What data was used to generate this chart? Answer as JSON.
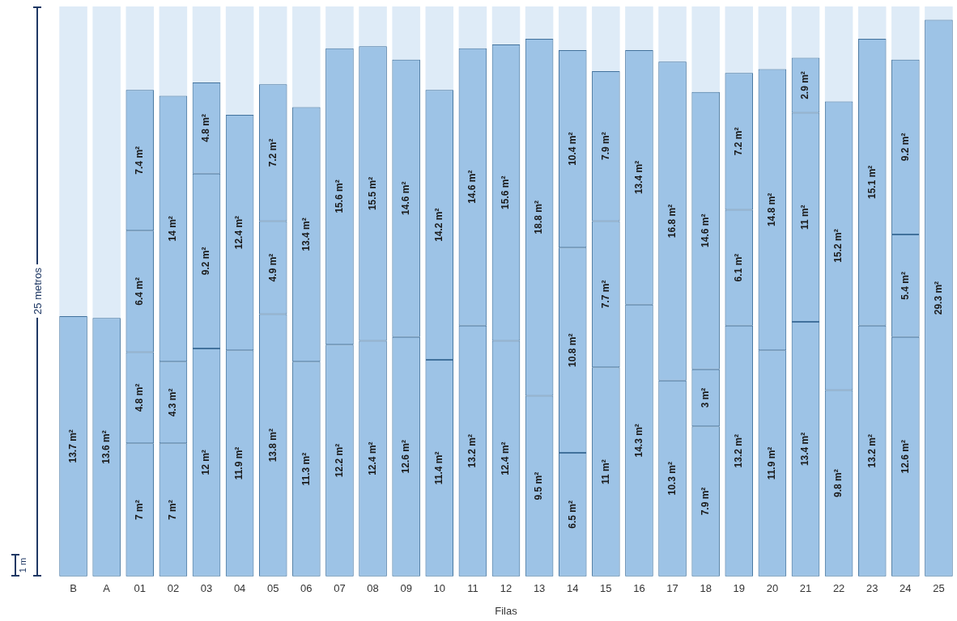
{
  "chart_data": {
    "type": "bar",
    "stacked": true,
    "xlabel": "Filas",
    "categories": [
      "B",
      "A",
      "01",
      "02",
      "03",
      "04",
      "05",
      "06",
      "07",
      "08",
      "09",
      "10",
      "11",
      "12",
      "13",
      "14",
      "15",
      "16",
      "17",
      "18",
      "19",
      "20",
      "21",
      "22",
      "23",
      "24",
      "25"
    ],
    "ylim": [
      0,
      30
    ],
    "tick_labels": "x",
    "grid": false,
    "legend": false,
    "annotations": [
      "25 metros",
      "1 m"
    ],
    "series": [
      {
        "color": "#9dc3e6",
        "values": [
          13.7,
          13.6,
          7,
          7,
          12,
          11.9,
          13.8,
          11.3,
          12.2,
          12.4,
          12.6,
          11.4,
          13.2,
          12.4,
          9.5,
          6.5,
          11,
          14.3,
          10.3,
          7.9,
          13.2,
          11.9,
          13.4,
          9.8,
          13.2,
          12.6,
          29.3
        ],
        "value_labels": [
          "13.7 m²",
          "13.6 m²",
          "7 m²",
          "7 m²",
          "12 m²",
          "11.9 m²",
          "13.8 m²",
          "11.3 m²",
          "12.2 m²",
          "12.4 m²",
          "12.6 m²",
          "11.4 m²",
          "13.2 m²",
          "12.4 m²",
          "9.5 m²",
          "6.5 m²",
          "11 m²",
          "14.3 m²",
          "10.3 m²",
          "7.9 m²",
          "13.2 m²",
          "11.9 m²",
          "13.4 m²",
          "9.8 m²",
          "13.2 m²",
          "12.6 m²",
          "29.3 m²"
        ]
      },
      {
        "color": "#9dc3e6",
        "values": [
          null,
          null,
          4.8,
          4.3,
          9.2,
          12.4,
          4.9,
          13.4,
          15.6,
          15.5,
          14.6,
          14.2,
          14.6,
          15.6,
          18.8,
          10.8,
          7.7,
          13.4,
          16.8,
          3,
          6.1,
          14.8,
          11,
          15.2,
          15.1,
          5.4,
          null
        ],
        "value_labels": [
          null,
          null,
          "4.8 m²",
          "4.3 m²",
          "9.2 m²",
          "12.4 m²",
          "4.9 m²",
          "13.4 m²",
          "15.6 m²",
          "15.5 m²",
          "14.6 m²",
          "14.2 m²",
          "14.6 m²",
          "15.6 m²",
          "18.8 m²",
          "10.8 m²",
          "7.7 m²",
          "13.4 m²",
          "16.8 m²",
          "3 m²",
          "6.1 m²",
          "14.8 m²",
          "11 m²",
          "15.2 m²",
          "15.1 m²",
          "5.4 m²",
          null
        ]
      },
      {
        "color": "#9dc3e6",
        "values": [
          null,
          null,
          6.4,
          14,
          4.8,
          null,
          7.2,
          null,
          null,
          null,
          null,
          null,
          null,
          null,
          null,
          10.4,
          7.9,
          null,
          null,
          14.6,
          7.2,
          null,
          2.9,
          null,
          null,
          9.2,
          null
        ],
        "value_labels": [
          null,
          null,
          "6.4 m²",
          "14 m²",
          "4.8 m²",
          null,
          "7.2 m²",
          null,
          null,
          null,
          null,
          null,
          null,
          null,
          null,
          "10.4 m²",
          "7.9 m²",
          null,
          null,
          "14.6 m²",
          "7.2 m²",
          null,
          "2.9 m²",
          null,
          null,
          "9.2 m²",
          null
        ]
      },
      {
        "color": "#9dc3e6",
        "values": [
          null,
          null,
          7.4,
          null,
          null,
          null,
          null,
          null,
          null,
          null,
          null,
          null,
          null,
          null,
          null,
          null,
          null,
          null,
          null,
          null,
          null,
          null,
          null,
          null,
          null,
          null,
          null
        ],
        "value_labels": [
          null,
          null,
          "7.4 m²",
          null,
          null,
          null,
          null,
          null,
          null,
          null,
          null,
          null,
          null,
          null,
          null,
          null,
          null,
          null,
          null,
          null,
          null,
          null,
          null,
          null,
          null,
          null,
          null
        ]
      }
    ]
  }
}
